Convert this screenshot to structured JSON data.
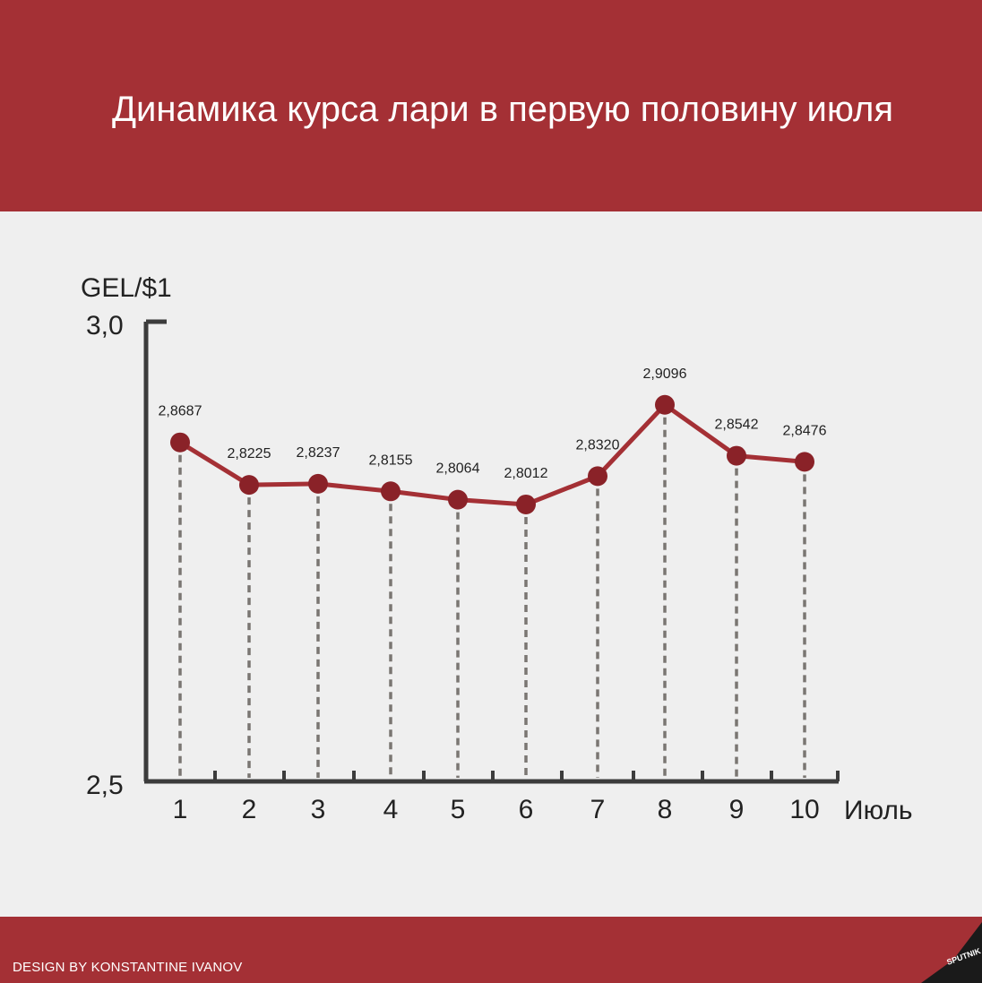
{
  "header": {
    "title": "Динамика курса лари в первую половину июля"
  },
  "footer": {
    "credit": "DESIGN BY KONSTANTINE IVANOV",
    "logo_text": "SPUTNIK"
  },
  "colors": {
    "brand": "#a43035",
    "line": "#a43035",
    "axis": "#3c3c3c",
    "dash": "#7a7672",
    "background": "#efefef"
  },
  "chart_data": {
    "type": "line",
    "title": "Динамика курса лари в первую половину июля",
    "ylabel": "GEL/$1",
    "xlabel": "Июль",
    "ylim": [
      2.5,
      3.0
    ],
    "ytick_labels": [
      "3,0",
      "2,5"
    ],
    "categories": [
      "1",
      "2",
      "3",
      "4",
      "5",
      "6",
      "7",
      "8",
      "9",
      "10"
    ],
    "series": [
      {
        "values": [
          2.8687,
          2.8225,
          2.8237,
          2.8155,
          2.8064,
          2.8012,
          2.832,
          2.9096,
          2.8542,
          2.8476
        ],
        "labels": [
          "2,8687",
          "2,8225",
          "2,8237",
          "2,8155",
          "2,8064",
          "2,8012",
          "2,8320",
          "2,9096",
          "2,8542",
          "2,8476"
        ]
      }
    ],
    "grid": false,
    "drop_lines": true
  }
}
